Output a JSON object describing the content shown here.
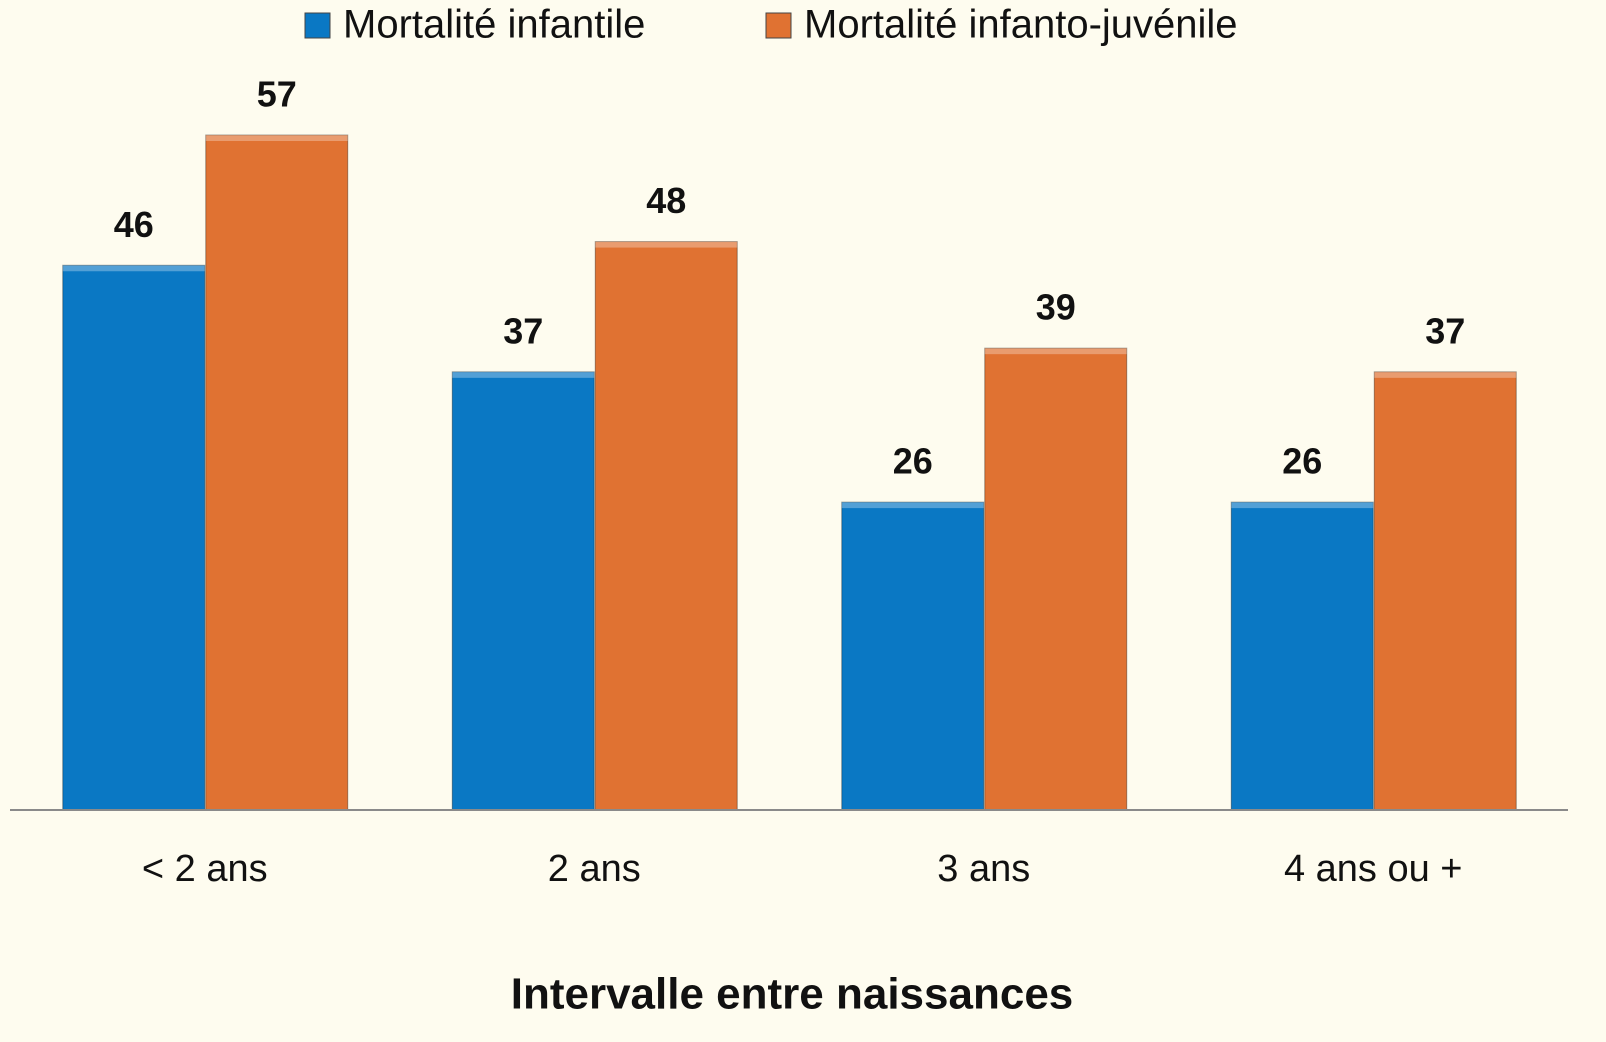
{
  "chart_data": {
    "type": "bar",
    "x_label": "Intervalle entre naissances",
    "categories": [
      "< 2 ans",
      "2 ans",
      "3 ans",
      "4 ans ou +"
    ],
    "series": [
      {
        "name": "Mortalité infantile",
        "color": "#0a78c4",
        "values": [
          46,
          37,
          26,
          26
        ]
      },
      {
        "name": "Mortalité infanto-juvénile",
        "color": "#e07232",
        "values": [
          57,
          48,
          39,
          37
        ]
      }
    ],
    "legend": "top"
  }
}
